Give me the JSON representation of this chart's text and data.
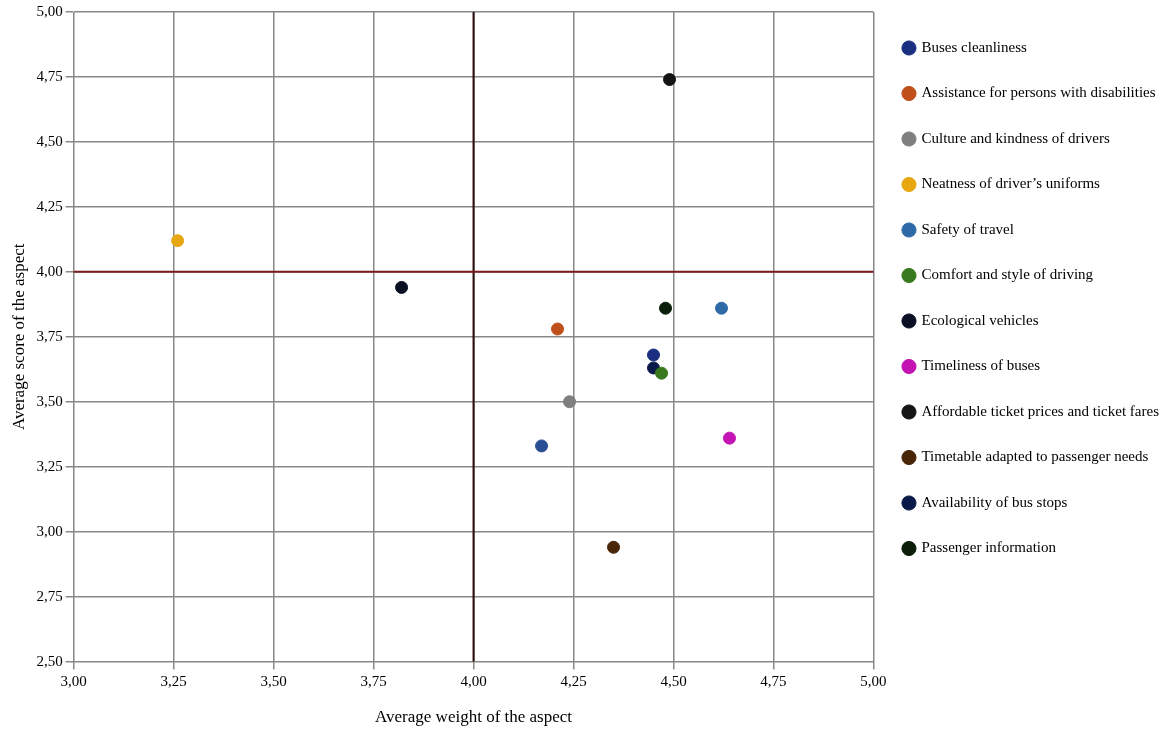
{
  "chart_data": {
    "type": "scatter",
    "xlabel": "Average weight of the aspect",
    "ylabel": "Average score of the aspect",
    "xlim": [
      3,
      5
    ],
    "ylim": [
      2.5,
      5
    ],
    "xticks": [
      {
        "value": 3,
        "label": "3,00"
      },
      {
        "value": 3.25,
        "label": "3,25"
      },
      {
        "value": 3.5,
        "label": "3,50"
      },
      {
        "value": 3.75,
        "label": "3,75"
      },
      {
        "value": 4,
        "label": "4,00"
      },
      {
        "value": 4.25,
        "label": "4,25"
      },
      {
        "value": 4.5,
        "label": "4,50"
      },
      {
        "value": 4.75,
        "label": "4,75"
      },
      {
        "value": 5,
        "label": "5,00"
      }
    ],
    "yticks": [
      {
        "value": 2.5,
        "label": "2,50"
      },
      {
        "value": 2.75,
        "label": "2,75"
      },
      {
        "value": 3,
        "label": "3,00"
      },
      {
        "value": 3.25,
        "label": "3,25"
      },
      {
        "value": 3.5,
        "label": "3,50"
      },
      {
        "value": 3.75,
        "label": "3,75"
      },
      {
        "value": 4,
        "label": "4,00"
      },
      {
        "value": 4.25,
        "label": "4,25"
      },
      {
        "value": 4.5,
        "label": "4,50"
      },
      {
        "value": 4.75,
        "label": "4,75"
      },
      {
        "value": 5,
        "label": "5,00"
      }
    ],
    "grid": true,
    "legend": "right",
    "marker": "circle",
    "ref_lines": [
      {
        "axis": "x",
        "value": 4,
        "color": "#2a0a0a"
      },
      {
        "axis": "y",
        "value": 4,
        "color": "#7a1a1a"
      }
    ],
    "series": [
      {
        "name": "Buses cleanliness",
        "color": "#1a2f80",
        "x": [
          4.45
        ],
        "values": [
          3.68
        ]
      },
      {
        "name": "Assistance for persons with disabilities",
        "color": "#c0501a",
        "x": [
          4.21
        ],
        "values": [
          3.78
        ]
      },
      {
        "name": "Culture and kindness of drivers",
        "color": "#7f7f7f",
        "x": [
          4.24
        ],
        "values": [
          3.5
        ]
      },
      {
        "name": "Neatness of driver’s uniforms",
        "color": "#e6a711",
        "x": [
          3.26
        ],
        "values": [
          4.12
        ]
      },
      {
        "name": "Safety of travel",
        "color": "#2e6aa8",
        "x": [
          4.62
        ],
        "values": [
          3.86
        ]
      },
      {
        "name": "Comfort and style of driving",
        "color": "#3a7a1e",
        "x": [
          4.47
        ],
        "values": [
          3.61
        ]
      },
      {
        "name": "Ecological vehicles",
        "color": "#0a0f24",
        "x": [
          3.82
        ],
        "values": [
          3.94
        ]
      },
      {
        "name": "Timeliness of buses",
        "color": "#c414b4",
        "x": [
          4.64
        ],
        "values": [
          3.36
        ]
      },
      {
        "name": "Affordable ticket prices and ticket fares",
        "color": "#141414",
        "x": [
          4.49
        ],
        "values": [
          4.74
        ]
      },
      {
        "name": "Timetable adapted to passenger needs",
        "color": "#4a2608",
        "x": [
          4.35
        ],
        "values": [
          2.94
        ]
      },
      {
        "name": "Availability of bus stops",
        "color": "#0a1a48",
        "x": [
          4.45
        ],
        "values": [
          3.63
        ]
      },
      {
        "name": "Passenger information",
        "color": "#0a1e0a",
        "x": [
          4.48
        ],
        "values": [
          3.86
        ]
      },
      {
        "color": "#2a4e94",
        "x": [
          4.17
        ],
        "values": [
          3.33
        ]
      }
    ]
  }
}
